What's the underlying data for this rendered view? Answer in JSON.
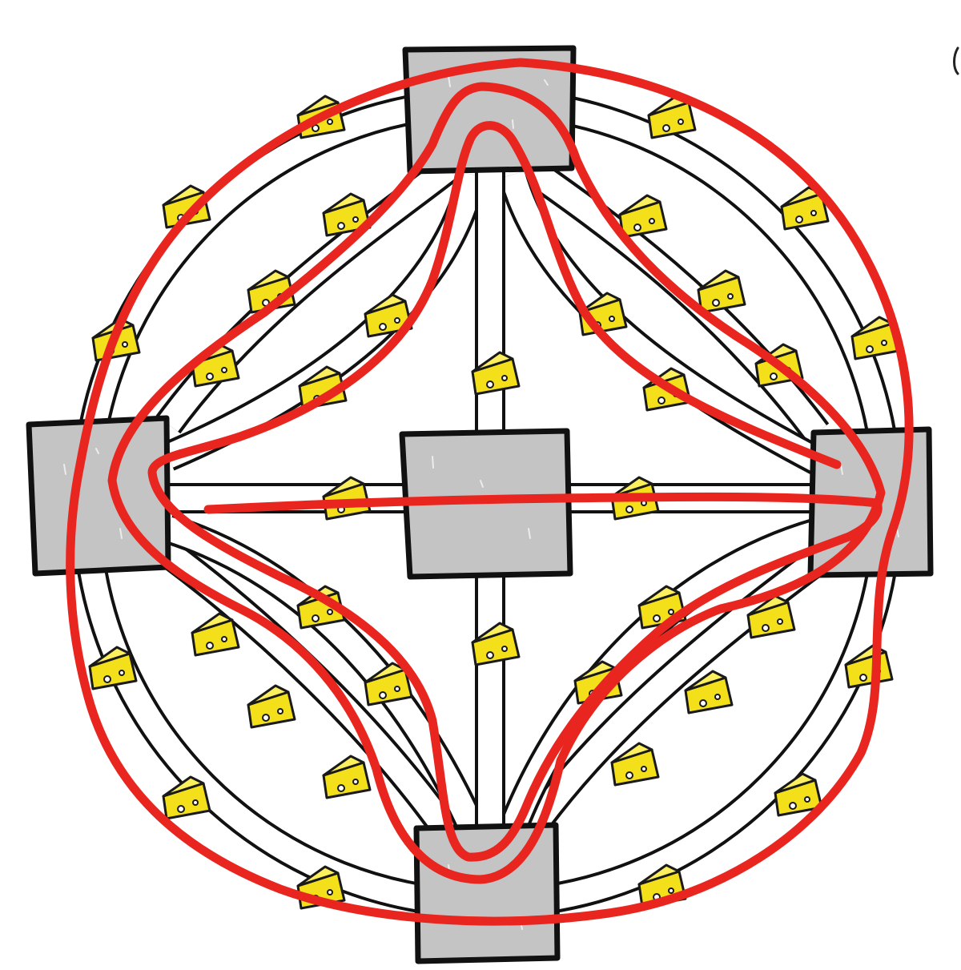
{
  "diagram": {
    "colors": {
      "background": "#ffffff",
      "corridor_line": "#111111",
      "room_fill": "#c4c4c4",
      "cheese": "#f3e01b",
      "route": "#e8261f"
    },
    "rooms": [
      "room-top",
      "room-left",
      "room-center",
      "room-right",
      "room-bottom"
    ],
    "icons": {
      "cheese": "cheese-icon",
      "route": "red-route-stroke"
    }
  }
}
